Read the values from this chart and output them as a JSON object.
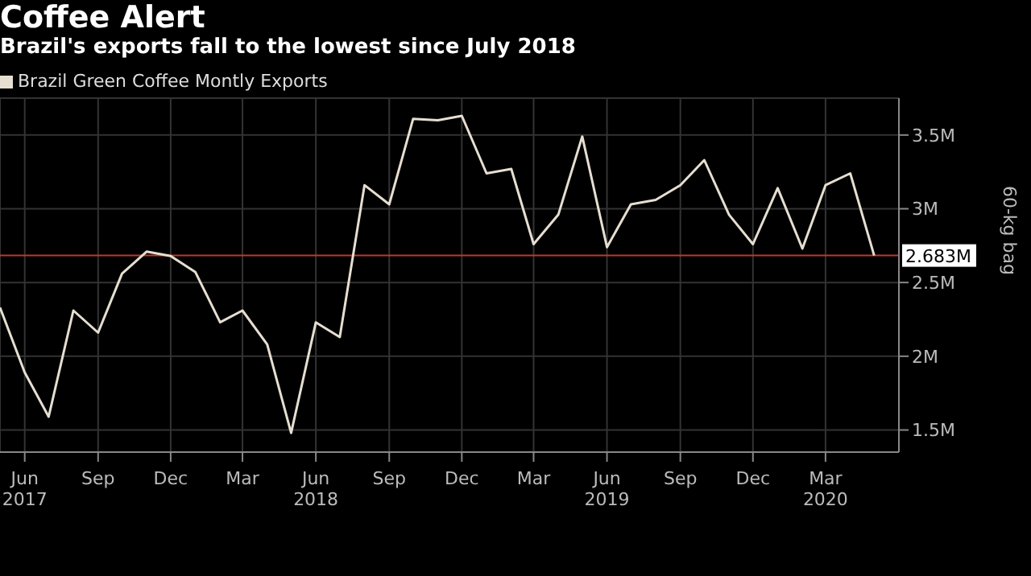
{
  "chart_data": {
    "type": "line",
    "title": "Coffee Alert",
    "subtitle": "Brazil's exports fall to the lowest since July 2018",
    "ylabel": "60-kg bag",
    "x": [
      "2017-05",
      "2017-06",
      "2017-07",
      "2017-08",
      "2017-09",
      "2017-10",
      "2017-11",
      "2017-12",
      "2018-01",
      "2018-02",
      "2018-03",
      "2018-04",
      "2018-05",
      "2018-06",
      "2018-07",
      "2018-08",
      "2018-09",
      "2018-10",
      "2018-11",
      "2018-12",
      "2019-01",
      "2019-02",
      "2019-03",
      "2019-04",
      "2019-05",
      "2019-06",
      "2019-07",
      "2019-08",
      "2019-09",
      "2019-10",
      "2019-11",
      "2019-12",
      "2020-01",
      "2020-02",
      "2020-03",
      "2020-04",
      "2020-05"
    ],
    "series": [
      {
        "name": "Brazil Green Coffee Montly Exports",
        "color": "#e6ded0",
        "values": [
          2.33,
          1.89,
          1.59,
          2.31,
          2.16,
          2.56,
          2.71,
          2.68,
          2.57,
          2.23,
          2.31,
          2.08,
          1.48,
          2.23,
          2.13,
          3.16,
          3.03,
          3.61,
          3.6,
          3.63,
          3.24,
          3.27,
          2.76,
          2.96,
          3.49,
          2.74,
          3.03,
          3.06,
          3.16,
          3.33,
          2.96,
          2.76,
          3.14,
          2.73,
          3.16,
          3.24,
          2.683
        ]
      }
    ],
    "xlim": [
      "2017-05",
      "2020-06"
    ],
    "xticks": [
      {
        "value": "2017-06",
        "label": "Jun 2017"
      },
      {
        "value": "2017-09",
        "label": "Sep"
      },
      {
        "value": "2017-12",
        "label": "Dec"
      },
      {
        "value": "2018-03",
        "label": "Mar"
      },
      {
        "value": "2018-06",
        "label": "Jun 2018"
      },
      {
        "value": "2018-09",
        "label": "Sep"
      },
      {
        "value": "2018-12",
        "label": "Dec"
      },
      {
        "value": "2019-03",
        "label": "Mar"
      },
      {
        "value": "2019-06",
        "label": "Jun 2019"
      },
      {
        "value": "2019-09",
        "label": "Sep"
      },
      {
        "value": "2019-12",
        "label": "Dec"
      },
      {
        "value": "2020-03",
        "label": "Mar 2020"
      }
    ],
    "ylim": [
      1.35,
      3.75
    ],
    "yticks": [
      {
        "value": 1.5,
        "label": "1.5M"
      },
      {
        "value": 2,
        "label": "2M"
      },
      {
        "value": 2.5,
        "label": "2.5M"
      },
      {
        "value": 3,
        "label": "3M"
      },
      {
        "value": 3.5,
        "label": "3.5M"
      }
    ],
    "ref_lines": [
      {
        "axis": "y",
        "value": 2.683,
        "label": "2.683M",
        "color": "#c0392b"
      }
    ],
    "grid": true,
    "legend": "top left",
    "marker": "none",
    "line_style": "solid"
  }
}
